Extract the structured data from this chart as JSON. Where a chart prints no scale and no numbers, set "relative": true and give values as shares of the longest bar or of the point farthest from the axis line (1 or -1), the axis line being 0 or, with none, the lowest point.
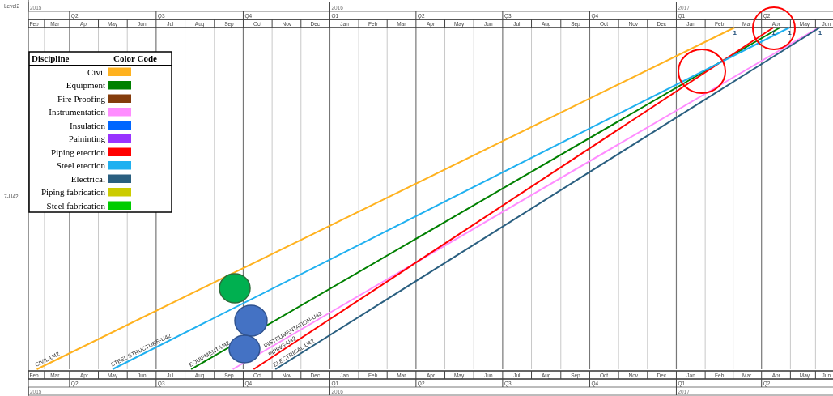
{
  "chart_data": {
    "type": "line",
    "relative": true,
    "ylabel": "7-U42",
    "legend_title": "Discipline",
    "legend": "top left",
    "grid": "x",
    "line_style": "solid",
    "xlim": [
      "2015-02-16",
      "2017-06-15"
    ],
    "xticks": [
      {
        "value": "2015-02-22",
        "label": "Feb"
      },
      {
        "value": "2015-03-16",
        "label": "Mar"
      },
      {
        "value": "2015-04-16",
        "label": "Apr"
      },
      {
        "value": "2015-05-16",
        "label": "May"
      },
      {
        "value": "2015-06-16",
        "label": "Jun"
      },
      {
        "value": "2015-07-16",
        "label": "Jul"
      },
      {
        "value": "2015-08-16",
        "label": "Aug"
      },
      {
        "value": "2015-09-16",
        "label": "Sep"
      },
      {
        "value": "2015-10-16",
        "label": "Oct"
      },
      {
        "value": "2015-11-16",
        "label": "Nov"
      },
      {
        "value": "2015-12-16",
        "label": "Dec"
      },
      {
        "value": "2016-01-16",
        "label": "Jan"
      },
      {
        "value": "2016-02-15",
        "label": "Feb"
      },
      {
        "value": "2016-03-16",
        "label": "Mar"
      },
      {
        "value": "2016-04-16",
        "label": "Apr"
      },
      {
        "value": "2016-05-16",
        "label": "May"
      },
      {
        "value": "2016-06-16",
        "label": "Jun"
      },
      {
        "value": "2016-07-16",
        "label": "Jul"
      },
      {
        "value": "2016-08-16",
        "label": "Aug"
      },
      {
        "value": "2016-09-16",
        "label": "Sep"
      },
      {
        "value": "2016-10-16",
        "label": "Oct"
      },
      {
        "value": "2016-11-16",
        "label": "Nov"
      },
      {
        "value": "2016-12-16",
        "label": "Dec"
      },
      {
        "value": "2017-01-16",
        "label": "Jan"
      },
      {
        "value": "2017-02-15",
        "label": "Feb"
      },
      {
        "value": "2017-03-16",
        "label": "Mar"
      },
      {
        "value": "2017-04-16",
        "label": "Apr"
      },
      {
        "value": "2017-05-16",
        "label": "May"
      },
      {
        "value": "2017-06-08",
        "label": "Jun"
      }
    ],
    "x2lim": [
      "2015-02-16",
      "2017-06-15"
    ],
    "x2ticks": [
      {
        "value": "2015-02-22",
        "label": "Feb"
      },
      {
        "value": "2015-03-16",
        "label": "Mar"
      },
      {
        "value": "2015-04-16",
        "label": "Apr"
      },
      {
        "value": "2015-05-16",
        "label": "May"
      },
      {
        "value": "2015-06-16",
        "label": "Jun"
      },
      {
        "value": "2015-07-16",
        "label": "Jul"
      },
      {
        "value": "2015-08-16",
        "label": "Aug"
      },
      {
        "value": "2015-09-16",
        "label": "Sep"
      },
      {
        "value": "2015-10-16",
        "label": "Oct"
      },
      {
        "value": "2015-11-16",
        "label": "Nov"
      },
      {
        "value": "2015-12-16",
        "label": "Dec"
      },
      {
        "value": "2016-01-16",
        "label": "Jan"
      },
      {
        "value": "2016-02-15",
        "label": "Feb"
      },
      {
        "value": "2016-03-16",
        "label": "Mar"
      },
      {
        "value": "2016-04-16",
        "label": "Apr"
      },
      {
        "value": "2016-05-16",
        "label": "May"
      },
      {
        "value": "2016-06-16",
        "label": "Jun"
      },
      {
        "value": "2016-07-16",
        "label": "Jul"
      },
      {
        "value": "2016-08-16",
        "label": "Aug"
      },
      {
        "value": "2016-09-16",
        "label": "Sep"
      },
      {
        "value": "2016-10-16",
        "label": "Oct"
      },
      {
        "value": "2016-11-16",
        "label": "Nov"
      },
      {
        "value": "2016-12-16",
        "label": "Dec"
      },
      {
        "value": "2017-01-16",
        "label": "Jan"
      },
      {
        "value": "2017-02-15",
        "label": "Feb"
      },
      {
        "value": "2017-03-16",
        "label": "Mar"
      },
      {
        "value": "2017-04-16",
        "label": "Apr"
      },
      {
        "value": "2017-05-16",
        "label": "May"
      },
      {
        "value": "2017-06-08",
        "label": "Jun"
      }
    ],
    "series": [
      {
        "name": "Civil",
        "color": "#ffb21f",
        "x": [
          "2015-02-25",
          "2017-03-03"
        ],
        "values": [
          0,
          1
        ]
      },
      {
        "name": "Equipment",
        "color": "#008000",
        "x": [
          "2015-08-07",
          "2017-04-20"
        ],
        "values": [
          0,
          1
        ]
      },
      {
        "name": "Fire Proofing",
        "color": "#843c0c"
      },
      {
        "name": "Instrumentation",
        "color": "#ff8cff",
        "x": [
          "2015-09-20",
          "2017-05-31"
        ],
        "values": [
          0,
          1
        ]
      },
      {
        "name": "Insulation",
        "color": "#0066ff"
      },
      {
        "name": "Paininting",
        "color": "#9933ff"
      },
      {
        "name": "Piping erection",
        "color": "#ff0000",
        "x": [
          "2015-10-12",
          "2017-04-13"
        ],
        "values": [
          0,
          1
        ]
      },
      {
        "name": "Steel erection",
        "color": "#1fb0f0",
        "x": [
          "2015-05-16",
          "2017-04-30"
        ],
        "values": [
          0,
          1
        ]
      },
      {
        "name": "Electrical",
        "color": "#2a5f80",
        "x": [
          "2015-11-04",
          "2017-06-01"
        ],
        "values": [
          0,
          1
        ]
      },
      {
        "name": "Piping fabrication",
        "color": "#cccc00"
      },
      {
        "name": "Steel fabrication",
        "color": "#00cc00"
      }
    ],
    "annotations": [
      "Level2",
      "Color Code",
      "Q2",
      "Q3",
      "Q4",
      "Q1",
      "Q2",
      "Q3",
      "Q4",
      "Q1",
      "Q2",
      "2015",
      "2016",
      "2017",
      {
        "text": "CIVIL-U42",
        "x": "2015-02-27",
        "y": 0.003
      },
      {
        "text": "STEEL STRUCTURE-U42",
        "x": "2015-05-18",
        "y": 0.003
      },
      {
        "text": "EQUIPMENT-U42",
        "x": "2015-08-09",
        "y": 0.003
      },
      {
        "text": "INSTRUMENTATION-U42",
        "x": "2015-10-27",
        "y": 0.059
      },
      {
        "text": "PIPING-U42",
        "x": "2015-11-01",
        "y": 0.034
      },
      {
        "text": "ELECTRICAL-U42",
        "x": "2015-11-06",
        "y": 0.003
      },
      {
        "text": "1",
        "x": "2017-03-03",
        "y": 1
      },
      {
        "text": "1",
        "x": "2017-04-13",
        "y": 1
      },
      {
        "text": "1",
        "x": "2017-04-30",
        "y": 1
      },
      {
        "text": "1",
        "x": "2017-06-01",
        "y": 1
      }
    ]
  }
}
